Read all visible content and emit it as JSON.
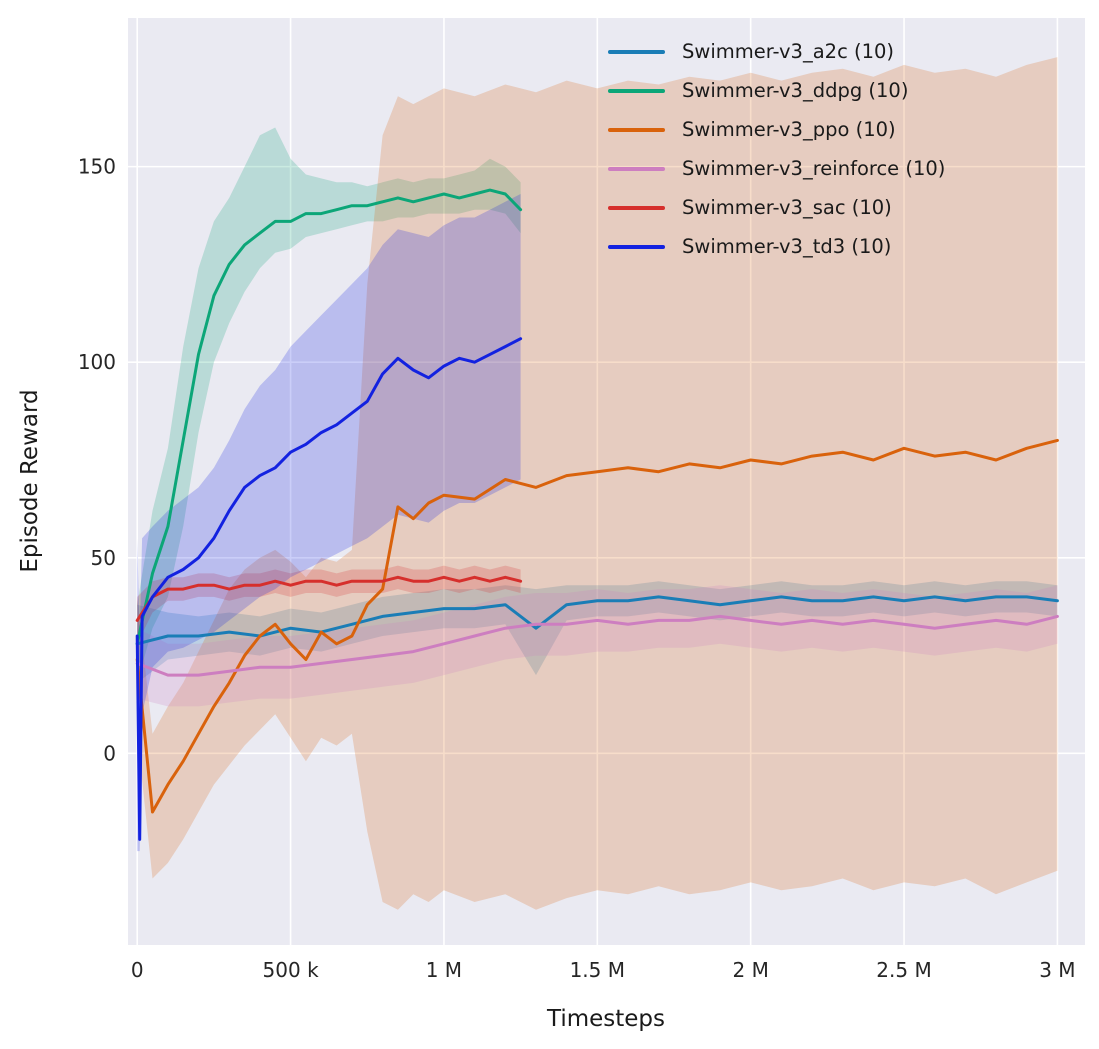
{
  "figure": {
    "background": "#ffffff",
    "plot_background": "#eaeaf2",
    "grid_color": "#ffffff",
    "text_color": "#262626"
  },
  "chart_data": {
    "type": "line",
    "title": "",
    "xlabel": "Timesteps",
    "ylabel": "Episode Reward",
    "xlim": [
      -30000,
      3090000
    ],
    "ylim": [
      -49,
      188
    ],
    "grid": true,
    "legend_position": "upper right",
    "band_opacity": 0.22,
    "xticks": [
      {
        "v": 0,
        "label": "0"
      },
      {
        "v": 500000,
        "label": "500 k"
      },
      {
        "v": 1000000,
        "label": "1 M"
      },
      {
        "v": 1500000,
        "label": "1.5 M"
      },
      {
        "v": 2000000,
        "label": "2 M"
      },
      {
        "v": 2500000,
        "label": "2.5 M"
      },
      {
        "v": 3000000,
        "label": "3 M"
      }
    ],
    "yticks": [
      {
        "v": 0,
        "label": "0"
      },
      {
        "v": 50,
        "label": "50"
      },
      {
        "v": 100,
        "label": "100"
      },
      {
        "v": 150,
        "label": "150"
      }
    ],
    "series": [
      {
        "id": "a2c",
        "name": "Swimmer-v3_a2c (10)",
        "color": "#1a7db6",
        "x": [
          0,
          100000,
          200000,
          300000,
          400000,
          500000,
          600000,
          700000,
          800000,
          900000,
          1000000,
          1100000,
          1200000,
          1300000,
          1400000,
          1500000,
          1600000,
          1700000,
          1800000,
          1900000,
          2000000,
          2100000,
          2200000,
          2300000,
          2400000,
          2500000,
          2600000,
          2700000,
          2800000,
          2900000,
          3000000
        ],
        "y": [
          28,
          30,
          30,
          31,
          30,
          32,
          31,
          33,
          35,
          36,
          37,
          37,
          38,
          32,
          38,
          39,
          39,
          40,
          39,
          38,
          39,
          40,
          39,
          39,
          40,
          39,
          40,
          39,
          40,
          40,
          39
        ],
        "lo": [
          18,
          24,
          25,
          26,
          25,
          27,
          26,
          28,
          30,
          31,
          32,
          32,
          33,
          20,
          34,
          35,
          35,
          36,
          35,
          34,
          35,
          36,
          35,
          35,
          36,
          35,
          36,
          35,
          36,
          36,
          35
        ],
        "hi": [
          38,
          36,
          35,
          36,
          35,
          37,
          36,
          38,
          40,
          41,
          42,
          42,
          43,
          42,
          43,
          43,
          43,
          44,
          43,
          42,
          43,
          44,
          43,
          43,
          44,
          43,
          44,
          43,
          44,
          44,
          43
        ]
      },
      {
        "id": "ddpg",
        "name": "Swimmer-v3_ddpg (10)",
        "color": "#0ca678",
        "x": [
          0,
          50000,
          100000,
          150000,
          200000,
          250000,
          300000,
          350000,
          400000,
          450000,
          500000,
          550000,
          600000,
          650000,
          700000,
          750000,
          800000,
          850000,
          900000,
          950000,
          1000000,
          1050000,
          1100000,
          1150000,
          1200000,
          1250000
        ],
        "y": [
          28,
          46,
          58,
          80,
          102,
          117,
          125,
          130,
          133,
          136,
          136,
          138,
          138,
          139,
          140,
          140,
          141,
          142,
          141,
          142,
          143,
          142,
          143,
          144,
          143,
          139
        ],
        "lo": [
          18,
          32,
          40,
          58,
          82,
          100,
          110,
          118,
          124,
          128,
          129,
          132,
          133,
          134,
          135,
          136,
          136,
          137,
          137,
          138,
          138,
          138,
          139,
          139,
          138,
          133
        ],
        "hi": [
          38,
          62,
          78,
          104,
          124,
          136,
          142,
          150,
          158,
          160,
          152,
          148,
          147,
          146,
          146,
          145,
          146,
          147,
          146,
          147,
          147,
          148,
          149,
          152,
          150,
          146
        ]
      },
      {
        "id": "ppo",
        "name": "Swimmer-v3_ppo (10)",
        "color": "#d9620c",
        "x": [
          0,
          50000,
          100000,
          150000,
          200000,
          250000,
          300000,
          350000,
          400000,
          450000,
          500000,
          550000,
          600000,
          650000,
          700000,
          750000,
          800000,
          850000,
          900000,
          950000,
          1000000,
          1100000,
          1200000,
          1300000,
          1400000,
          1500000,
          1600000,
          1700000,
          1800000,
          1900000,
          2000000,
          2100000,
          2200000,
          2300000,
          2400000,
          2500000,
          2600000,
          2700000,
          2800000,
          2900000,
          3000000
        ],
        "y": [
          24,
          -15,
          -8,
          -2,
          5,
          12,
          18,
          25,
          30,
          33,
          28,
          24,
          31,
          28,
          30,
          38,
          42,
          63,
          60,
          64,
          66,
          65,
          70,
          68,
          71,
          72,
          73,
          72,
          74,
          73,
          75,
          74,
          76,
          77,
          75,
          78,
          76,
          77,
          75,
          78,
          80
        ],
        "lo": [
          5,
          -32,
          -28,
          -22,
          -15,
          -8,
          -3,
          2,
          6,
          10,
          4,
          -2,
          4,
          2,
          5,
          -20,
          -38,
          -40,
          -36,
          -38,
          -35,
          -38,
          -36,
          -40,
          -37,
          -35,
          -36,
          -34,
          -36,
          -35,
          -33,
          -35,
          -34,
          -32,
          -35,
          -33,
          -34,
          -32,
          -36,
          -33,
          -30
        ],
        "hi": [
          40,
          5,
          12,
          18,
          26,
          34,
          42,
          47,
          50,
          52,
          49,
          45,
          50,
          49,
          52,
          120,
          158,
          168,
          166,
          168,
          170,
          168,
          171,
          169,
          172,
          170,
          172,
          171,
          173,
          172,
          174,
          172,
          174,
          175,
          173,
          176,
          174,
          175,
          173,
          176,
          178
        ]
      },
      {
        "id": "reinforce",
        "name": "Swimmer-v3_reinforce (10)",
        "color": "#cd7ec0",
        "x": [
          0,
          100000,
          200000,
          300000,
          400000,
          500000,
          600000,
          700000,
          800000,
          900000,
          1000000,
          1100000,
          1200000,
          1300000,
          1400000,
          1500000,
          1600000,
          1700000,
          1800000,
          1900000,
          2000000,
          2100000,
          2200000,
          2300000,
          2400000,
          2500000,
          2600000,
          2700000,
          2800000,
          2900000,
          3000000
        ],
        "y": [
          23,
          20,
          20,
          21,
          22,
          22,
          23,
          24,
          25,
          26,
          28,
          30,
          32,
          33,
          33,
          34,
          33,
          34,
          34,
          35,
          34,
          33,
          34,
          33,
          34,
          33,
          32,
          33,
          34,
          33,
          35
        ],
        "lo": [
          14,
          12,
          12,
          13,
          14,
          14,
          15,
          16,
          17,
          18,
          20,
          22,
          24,
          25,
          25,
          26,
          26,
          27,
          27,
          28,
          27,
          26,
          27,
          26,
          27,
          26,
          25,
          26,
          27,
          26,
          28
        ],
        "hi": [
          32,
          28,
          28,
          29,
          30,
          30,
          31,
          32,
          33,
          34,
          36,
          38,
          40,
          41,
          41,
          42,
          41,
          42,
          42,
          43,
          42,
          41,
          42,
          41,
          42,
          41,
          40,
          41,
          42,
          41,
          43
        ]
      },
      {
        "id": "sac",
        "name": "Swimmer-v3_sac (10)",
        "color": "#d62f2c",
        "x": [
          0,
          50000,
          100000,
          150000,
          200000,
          250000,
          300000,
          350000,
          400000,
          450000,
          500000,
          550000,
          600000,
          650000,
          700000,
          750000,
          800000,
          850000,
          900000,
          950000,
          1000000,
          1050000,
          1100000,
          1150000,
          1200000,
          1250000
        ],
        "y": [
          34,
          40,
          42,
          42,
          43,
          43,
          42,
          43,
          43,
          44,
          43,
          44,
          44,
          43,
          44,
          44,
          44,
          45,
          44,
          44,
          45,
          44,
          45,
          44,
          45,
          44
        ],
        "lo": [
          28,
          36,
          39,
          39,
          40,
          40,
          39,
          40,
          40,
          41,
          40,
          41,
          41,
          40,
          41,
          41,
          41,
          42,
          41,
          41,
          42,
          41,
          42,
          41,
          42,
          41
        ],
        "hi": [
          40,
          44,
          45,
          45,
          46,
          46,
          45,
          46,
          46,
          47,
          46,
          47,
          47,
          46,
          47,
          47,
          47,
          48,
          47,
          47,
          48,
          47,
          48,
          47,
          48,
          47
        ]
      },
      {
        "id": "td3",
        "name": "Swimmer-v3_td3 (10)",
        "color": "#1322e0",
        "x": [
          0,
          8000,
          16000,
          50000,
          100000,
          150000,
          200000,
          250000,
          300000,
          350000,
          400000,
          450000,
          500000,
          550000,
          600000,
          650000,
          700000,
          750000,
          800000,
          850000,
          900000,
          950000,
          1000000,
          1050000,
          1100000,
          1150000,
          1200000,
          1250000
        ],
        "y": [
          30,
          -22,
          35,
          40,
          45,
          47,
          50,
          55,
          62,
          68,
          71,
          73,
          77,
          79,
          82,
          84,
          87,
          90,
          97,
          101,
          98,
          96,
          99,
          101,
          100,
          102,
          104,
          106
        ],
        "lo": [
          -25,
          -25,
          10,
          22,
          26,
          27,
          29,
          31,
          34,
          37,
          40,
          42,
          45,
          47,
          49,
          51,
          53,
          55,
          58,
          61,
          60,
          59,
          62,
          64,
          64,
          66,
          68,
          70
        ],
        "hi": [
          55,
          30,
          55,
          58,
          62,
          65,
          68,
          73,
          80,
          88,
          94,
          98,
          104,
          108,
          112,
          116,
          120,
          124,
          130,
          134,
          133,
          132,
          135,
          137,
          137,
          139,
          141,
          143
        ]
      }
    ]
  }
}
